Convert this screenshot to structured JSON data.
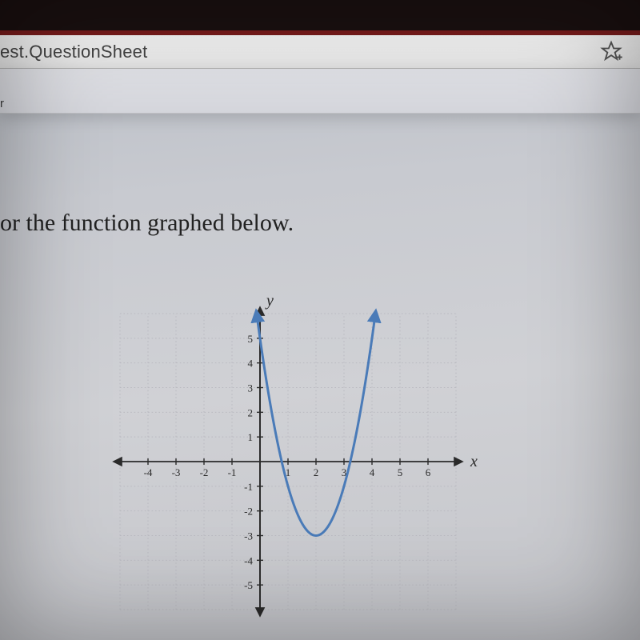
{
  "browser": {
    "url_visible_fragment": "est.QuestionSheet",
    "star_icon": "star-outline"
  },
  "toolbar": {
    "fragment": "r"
  },
  "question": {
    "prompt_visible": "or the function graphed below."
  },
  "graph": {
    "type": "parabola",
    "x_label": "x",
    "y_label": "y",
    "xlim": [
      -5,
      7
    ],
    "ylim": [
      -6,
      6
    ],
    "xtick_labels": [
      "-4",
      "-3",
      "-2",
      "-1",
      "1",
      "2",
      "3",
      "4",
      "5",
      "6"
    ],
    "xtick_values": [
      -4,
      -3,
      -2,
      -1,
      1,
      2,
      3,
      4,
      5,
      6
    ],
    "ytick_labels": [
      "-5",
      "-4",
      "-3",
      "-2",
      "-1",
      "1",
      "2",
      "3",
      "4",
      "5"
    ],
    "ytick_values": [
      -5,
      -4,
      -3,
      -2,
      -1,
      1,
      2,
      3,
      4,
      5
    ],
    "grid_color": "#b9b9c0",
    "axis_color": "#2a2a2a",
    "tick_font_size": 13,
    "axis_label_font_size": 20,
    "background_color": "transparent",
    "curve": {
      "color": "#4a7bb8",
      "width": 3,
      "vertex": [
        2,
        -3
      ],
      "coefficient": 2,
      "x_start": -0.12,
      "x_end": 4.12,
      "arrow_start": true,
      "arrow_end": true
    }
  }
}
